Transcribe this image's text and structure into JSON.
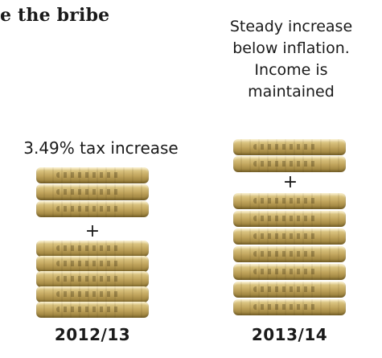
{
  "title": "e the bribe",
  "note_right": [
    "Steady increase",
    "below inflation.",
    "Income is",
    "maintained"
  ],
  "label_left": "3.49% tax increase",
  "plus_symbol": "+",
  "years": [
    "2012/13",
    "2013/14"
  ],
  "colors": {
    "text": "#1a1a1a",
    "coin_light": "#f3e6b8",
    "coin_mid": "#bfa35a",
    "coin_dark": "#8f7634"
  },
  "stacks": [
    {
      "year": "2012/13",
      "top_coins": 3,
      "bottom_coins": 5
    },
    {
      "year": "2013/14",
      "top_coins": 2,
      "bottom_coins": 7
    }
  ]
}
